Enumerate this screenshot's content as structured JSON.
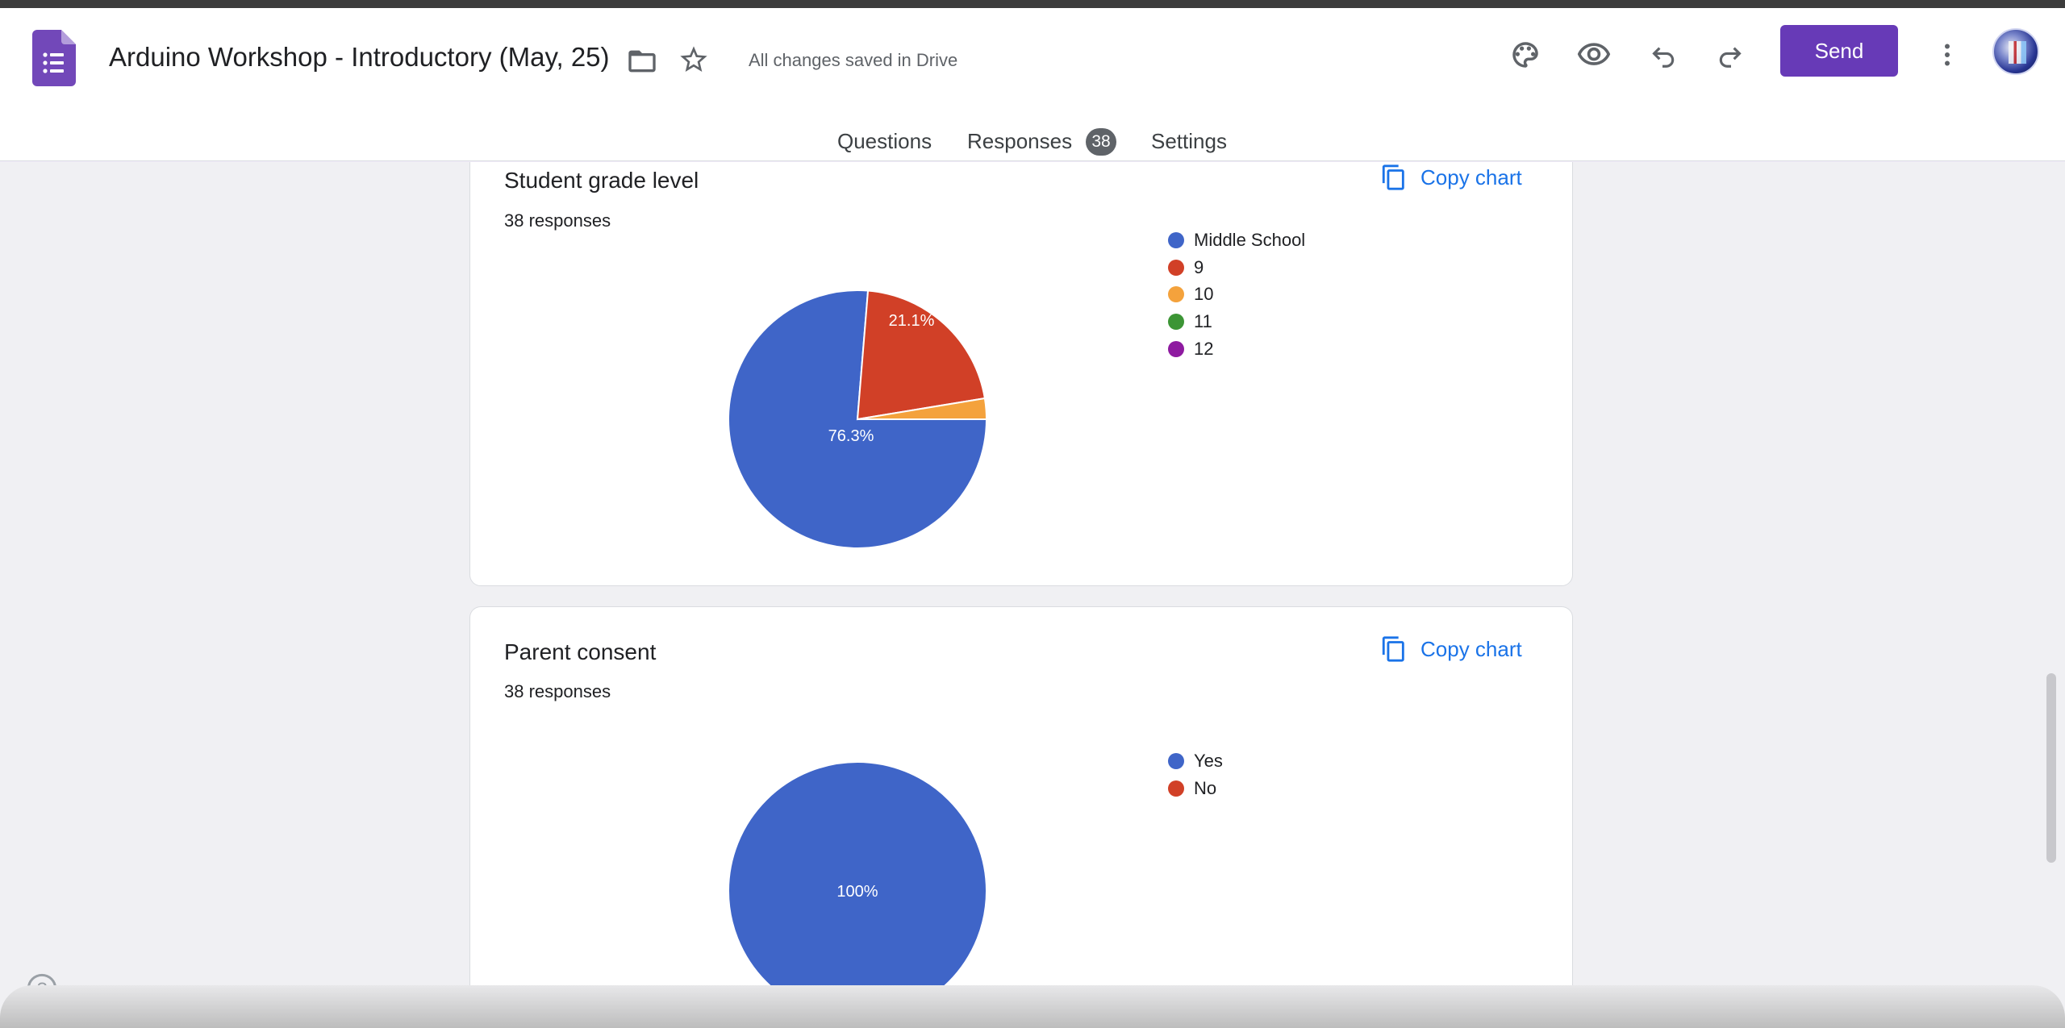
{
  "header": {
    "title": "Arduino Workshop - Introductory  (May, 25)",
    "save_status": "All changes saved in Drive",
    "send_label": "Send",
    "icons": [
      "forms-logo-icon",
      "folder-icon",
      "star-icon",
      "palette-icon",
      "preview-eye-icon",
      "undo-icon",
      "redo-icon",
      "more-vert-icon",
      "avatar"
    ]
  },
  "tabs": {
    "questions": "Questions",
    "responses": "Responses",
    "responses_count": "38",
    "settings": "Settings",
    "active": "responses"
  },
  "colors": {
    "accent": "#673ab7",
    "link": "#1a73e8",
    "series": [
      "#3f65c8",
      "#d14027",
      "#f4a23c",
      "#3c9535",
      "#8e1aa0"
    ]
  },
  "cards": [
    {
      "title": "Student grade level",
      "responses": "38 responses",
      "copy_label": "Copy chart",
      "legend": [
        "Middle School",
        "9",
        "10",
        "11",
        "12"
      ],
      "slice_labels": [
        "76.3%",
        "21.1%"
      ]
    },
    {
      "title": "Parent consent",
      "responses": "38 responses",
      "copy_label": "Copy chart",
      "legend": [
        "Yes",
        "No"
      ],
      "slice_labels": [
        "100%"
      ]
    }
  ],
  "chart_data": [
    {
      "type": "pie",
      "title": "Student grade level",
      "categories": [
        "Middle School",
        "9",
        "10",
        "11",
        "12"
      ],
      "values": [
        76.3,
        21.1,
        2.6,
        0,
        0
      ],
      "legend": "right"
    },
    {
      "type": "pie",
      "title": "Parent consent",
      "categories": [
        "Yes",
        "No"
      ],
      "values": [
        100,
        0
      ],
      "legend": "right"
    }
  ]
}
